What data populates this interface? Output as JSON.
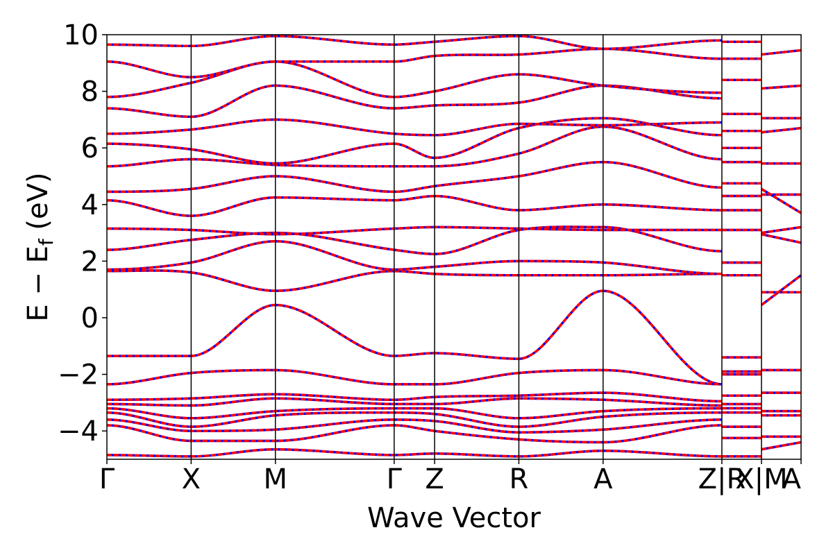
{
  "chart_data": {
    "type": "line",
    "title": "",
    "xlabel": "Wave Vector",
    "ylabel": "E − E",
    "ylabel_subscript": "f",
    "ylabel_unit": " (eV)",
    "ylim": [
      -5,
      10
    ],
    "yticks": [
      -4,
      -2,
      0,
      2,
      4,
      6,
      8,
      10
    ],
    "ytick_labels": [
      "−4",
      "−2",
      "0",
      "2",
      "4",
      "6",
      "8",
      "10"
    ],
    "grid": false,
    "line_colors": {
      "primary": "#0000ff",
      "overlay": "#ff0000"
    },
    "kpath_labels": [
      "Γ",
      "X",
      "M",
      "Γ",
      "Z",
      "R",
      "A",
      "Z|R",
      "X|M",
      "A"
    ],
    "kpath_positions": [
      0,
      1,
      2,
      3.41,
      3.89,
      4.89,
      5.89,
      7.3,
      7.77,
      8.24
    ],
    "segments": [
      {
        "x": [
          0,
          1,
          2,
          3.41,
          3.89,
          4.89,
          5.89,
          7.3
        ],
        "bands": [
          [
            -1.35,
            -1.35,
            0.45,
            -1.35,
            -1.25,
            -1.45,
            0.95,
            -2.35
          ],
          [
            -2.35,
            -1.95,
            -1.85,
            -2.35,
            -2.35,
            -1.95,
            -1.85,
            -2.35
          ],
          [
            1.65,
            1.6,
            0.95,
            1.65,
            1.55,
            1.5,
            1.5,
            1.55
          ],
          [
            1.7,
            1.95,
            2.7,
            1.7,
            1.8,
            2.0,
            1.95,
            1.55
          ],
          [
            2.4,
            2.75,
            3.0,
            2.4,
            2.25,
            3.1,
            3.2,
            2.35
          ],
          [
            3.15,
            3.1,
            2.95,
            3.15,
            3.2,
            3.15,
            3.1,
            3.1
          ],
          [
            4.15,
            3.6,
            4.25,
            4.15,
            4.3,
            3.8,
            4.0,
            3.8
          ],
          [
            4.45,
            4.55,
            5.0,
            4.45,
            4.65,
            5.0,
            5.5,
            4.6
          ],
          [
            5.35,
            5.6,
            5.4,
            5.35,
            5.35,
            5.8,
            6.75,
            5.6
          ],
          [
            6.15,
            5.95,
            5.45,
            6.15,
            5.65,
            6.7,
            7.05,
            6.45
          ],
          [
            6.5,
            6.65,
            7.0,
            6.5,
            6.45,
            6.85,
            6.8,
            6.9
          ],
          [
            7.4,
            7.1,
            8.2,
            7.4,
            7.5,
            7.6,
            8.2,
            7.75
          ],
          [
            7.8,
            8.3,
            9.05,
            7.8,
            8.0,
            8.6,
            8.2,
            7.95
          ],
          [
            9.05,
            8.5,
            9.05,
            9.05,
            9.25,
            9.3,
            9.5,
            9.15
          ],
          [
            9.65,
            9.6,
            9.95,
            9.65,
            9.75,
            9.95,
            9.5,
            9.8
          ],
          [
            -2.9,
            -2.85,
            -2.7,
            -2.9,
            -2.8,
            -2.75,
            -2.65,
            -2.95
          ],
          [
            -3.05,
            -3.1,
            -2.85,
            -3.05,
            -3.05,
            -2.85,
            -2.9,
            -3.1
          ],
          [
            -3.2,
            -3.55,
            -3.3,
            -3.2,
            -3.2,
            -3.55,
            -3.3,
            -3.2
          ],
          [
            -3.35,
            -3.85,
            -3.45,
            -3.35,
            -3.4,
            -3.85,
            -3.5,
            -3.35
          ],
          [
            -3.6,
            -4.0,
            -3.95,
            -3.6,
            -3.65,
            -4.05,
            -3.95,
            -3.6
          ],
          [
            -3.8,
            -4.35,
            -4.35,
            -3.8,
            -4.0,
            -4.3,
            -4.4,
            -3.8
          ],
          [
            -4.85,
            -4.9,
            -4.65,
            -4.85,
            -4.8,
            -4.9,
            -4.7,
            -4.9
          ]
        ]
      },
      {
        "x": [
          7.3,
          7.77
        ],
        "bands": [
          [
            -1.4,
            -1.4
          ],
          [
            -1.9,
            -1.9
          ],
          [
            -2.0,
            -2.0
          ],
          [
            -2.75,
            -2.75
          ],
          [
            -3.05,
            -3.05
          ],
          [
            -3.2,
            -3.2
          ],
          [
            -3.35,
            -3.35
          ],
          [
            -3.85,
            -3.85
          ],
          [
            -4.25,
            -4.25
          ],
          [
            -4.9,
            -4.9
          ],
          [
            1.5,
            1.5
          ],
          [
            1.95,
            1.95
          ],
          [
            3.1,
            3.1
          ],
          [
            3.8,
            3.8
          ],
          [
            4.3,
            4.3
          ],
          [
            4.75,
            4.75
          ],
          [
            5.5,
            5.5
          ],
          [
            6.0,
            6.0
          ],
          [
            6.6,
            6.6
          ],
          [
            7.2,
            7.2
          ],
          [
            8.4,
            8.4
          ],
          [
            9.15,
            9.15
          ],
          [
            9.75,
            9.75
          ]
        ]
      },
      {
        "x": [
          7.77,
          8.24
        ],
        "bands": [
          [
            -1.85,
            -1.85
          ],
          [
            -2.65,
            -2.65
          ],
          [
            -3.3,
            -3.3
          ],
          [
            -3.45,
            -3.45
          ],
          [
            -4.2,
            -4.2
          ],
          [
            -4.65,
            -4.4
          ],
          [
            0.45,
            1.5
          ],
          [
            0.9,
            0.9
          ],
          [
            2.95,
            2.65
          ],
          [
            3.0,
            3.2
          ],
          [
            4.35,
            4.35
          ],
          [
            4.55,
            3.7
          ],
          [
            5.45,
            5.45
          ],
          [
            6.55,
            6.7
          ],
          [
            7.05,
            7.05
          ],
          [
            8.1,
            8.2
          ],
          [
            9.3,
            9.45
          ]
        ]
      }
    ]
  }
}
